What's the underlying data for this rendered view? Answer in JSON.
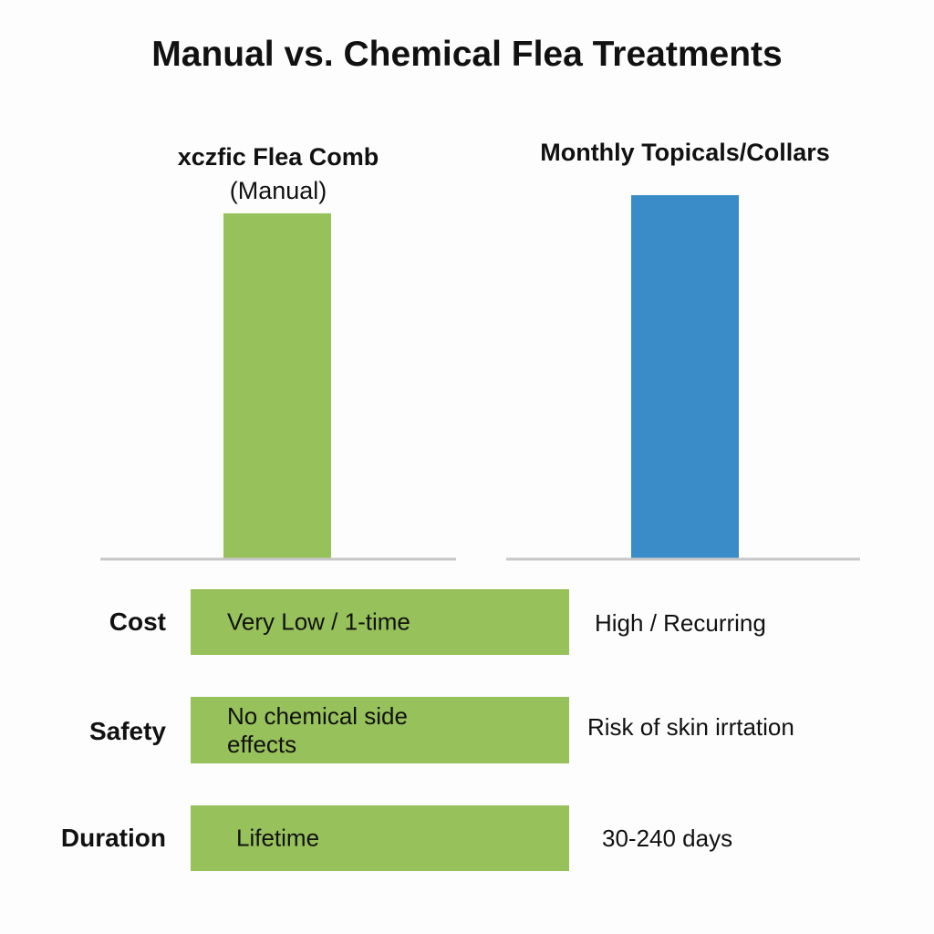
{
  "chart_data": {
    "type": "bar",
    "title": "Manual vs. Chemical Flea Treatments",
    "categories": [
      "xczfic Flea Comb",
      "Monthly Topicals/Collars"
    ],
    "category_subtitles": [
      "(Manual)",
      ""
    ],
    "values": [
      0.95,
      1.0
    ],
    "ylim": [
      0,
      1
    ],
    "colors": [
      "#97c15a",
      "#3a8cc9"
    ],
    "grid": false,
    "xlabel": "",
    "ylabel": ""
  },
  "table": {
    "rows": [
      {
        "label": "Cost",
        "manual": "Very Low / 1-time",
        "chemical": "High / Recurring"
      },
      {
        "label": "Safety",
        "manual": "No chemical side effects",
        "chemical": "Risk of skin irrtation"
      },
      {
        "label": "Duration",
        "manual": "Lifetime",
        "chemical": "30-240 days"
      }
    ],
    "highlight_color": "#97c15a"
  }
}
